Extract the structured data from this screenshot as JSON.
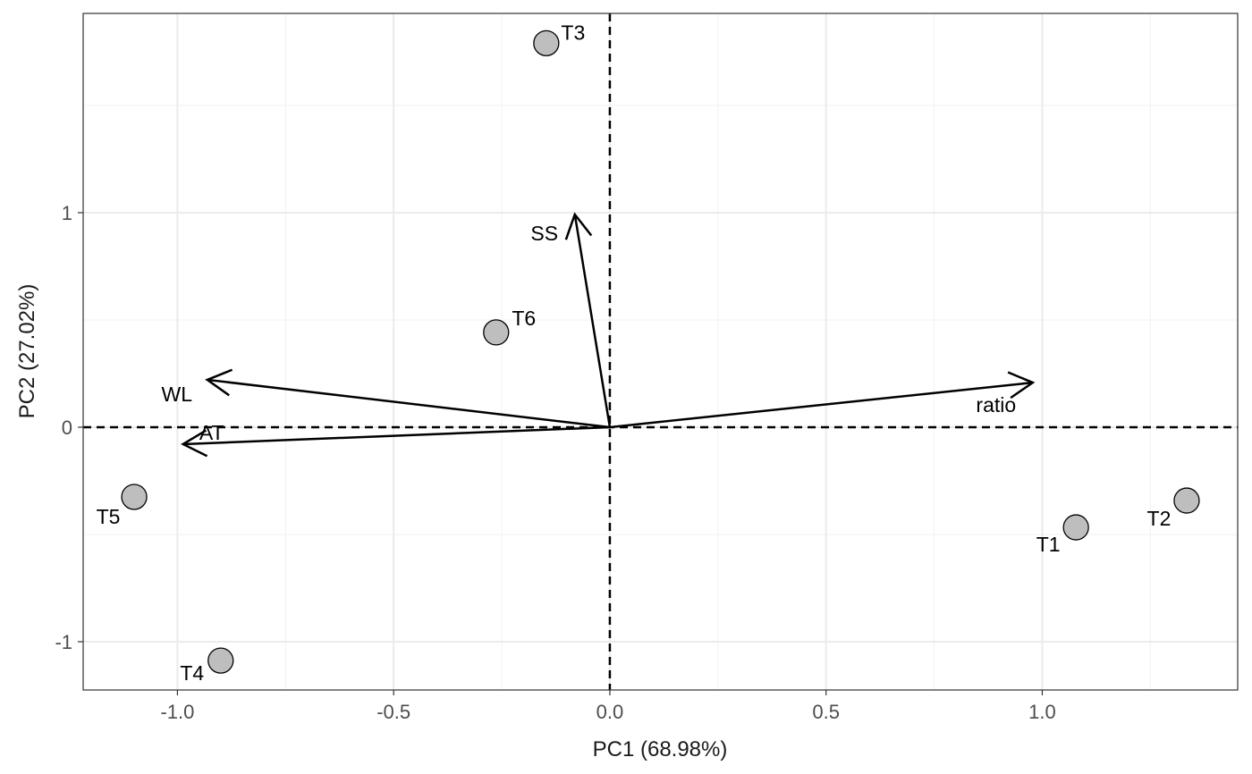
{
  "chart_data": {
    "type": "scatter",
    "title": "",
    "xlabel": "PC1 (68.98%)",
    "ylabel": "PC2 (27.02%)",
    "xlim": [
      -1.218,
      1.452
    ],
    "ylim": [
      -1.225,
      1.929
    ],
    "x_ticks": [
      -1.0,
      -0.5,
      0.0,
      0.5,
      1.0
    ],
    "x_tick_labels": [
      "-1.0",
      "-0.5",
      "0.0",
      "0.5",
      "1.0"
    ],
    "y_ticks": [
      -1,
      0,
      1
    ],
    "y_tick_labels": [
      "-1",
      "0",
      "1"
    ],
    "grid": true,
    "reference_lines": {
      "x": 0,
      "y": 0,
      "style": "dashed"
    },
    "points": [
      {
        "label": "T1",
        "x": 1.078,
        "y": -0.467
      },
      {
        "label": "T2",
        "x": 1.334,
        "y": -0.342
      },
      {
        "label": "T3",
        "x": -0.147,
        "y": 1.79
      },
      {
        "label": "T4",
        "x": -0.9,
        "y": -1.088
      },
      {
        "label": "T5",
        "x": -1.1,
        "y": -0.325
      },
      {
        "label": "T6",
        "x": -0.263,
        "y": 0.442
      }
    ],
    "loadings": [
      {
        "label": "SS",
        "x": -0.081,
        "y": 0.992
      },
      {
        "label": "WL",
        "x": -0.931,
        "y": 0.221
      },
      {
        "label": "AT",
        "x": -0.987,
        "y": -0.079
      },
      {
        "label": "ratio",
        "x": 0.978,
        "y": 0.208
      }
    ],
    "colors": {
      "point_fill": "#bebebe",
      "point_stroke": "#000000",
      "arrow": "#000000",
      "grid": "#ebebeb"
    }
  }
}
